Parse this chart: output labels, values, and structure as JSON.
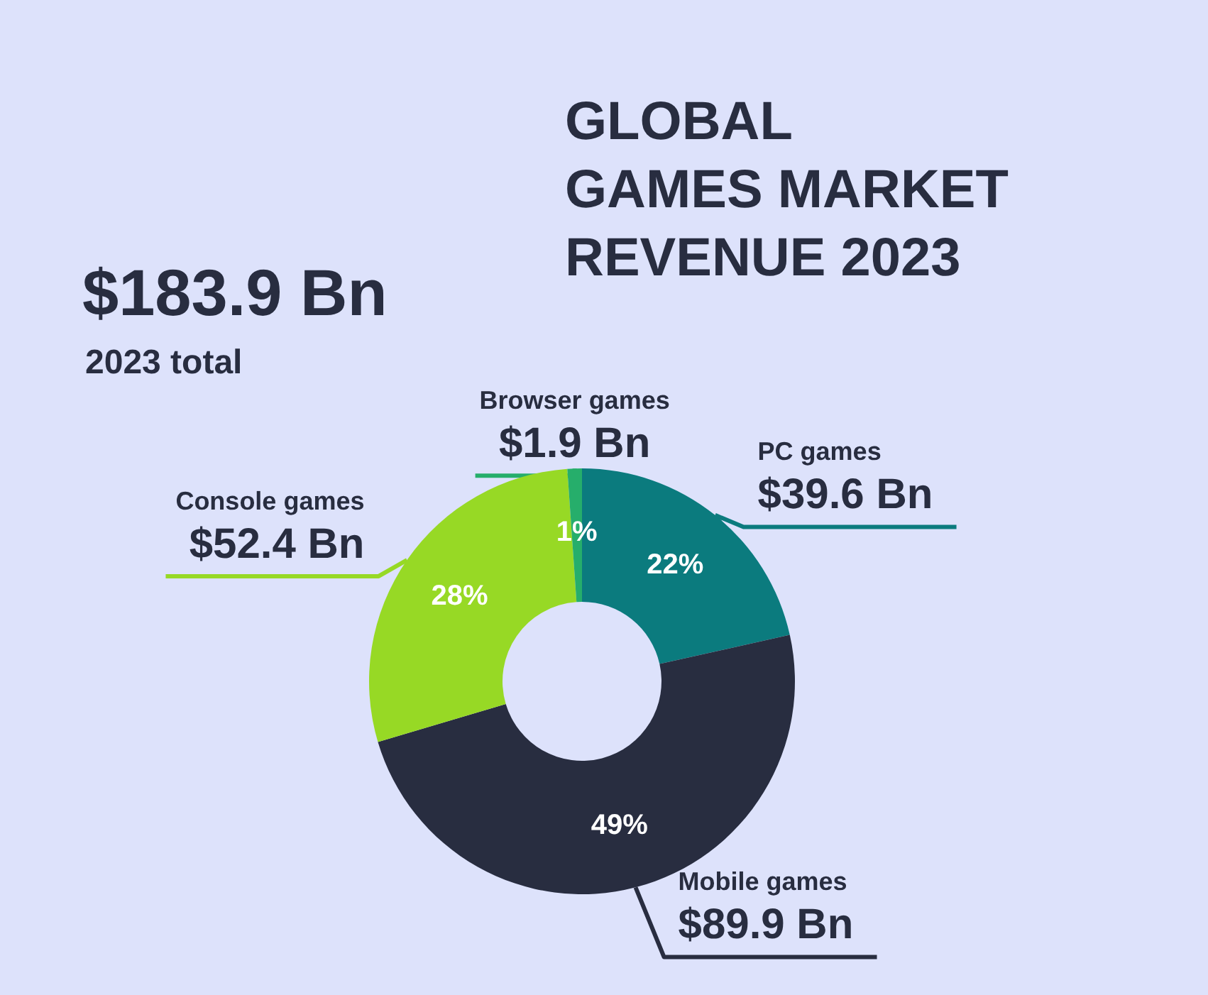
{
  "chart_data": {
    "type": "donut",
    "title": "GLOBAL\nGAMES MARKET\nREVENUE 2023",
    "subtitle": "$183.9 Bn",
    "categories": [
      "PC games",
      "Mobile games",
      "Console games",
      "Browser games"
    ],
    "values": [
      21.5,
      48.9,
      28.5,
      1.1
    ],
    "colors": [
      "#0b7b7e",
      "#282d40",
      "#97d925",
      "#26ae6b"
    ],
    "value_labels": [
      "22%",
      "49%",
      "28%",
      "1%"
    ],
    "annotations": [
      "2023 total",
      {
        "text": "$39.6 Bn",
        "x": "PC games"
      },
      {
        "text": "$89.9 Bn",
        "x": "Mobile games"
      },
      {
        "text": "$52.4 Bn",
        "x": "Console games"
      },
      {
        "text": "$1.9 Bn",
        "x": "Browser games"
      }
    ]
  }
}
